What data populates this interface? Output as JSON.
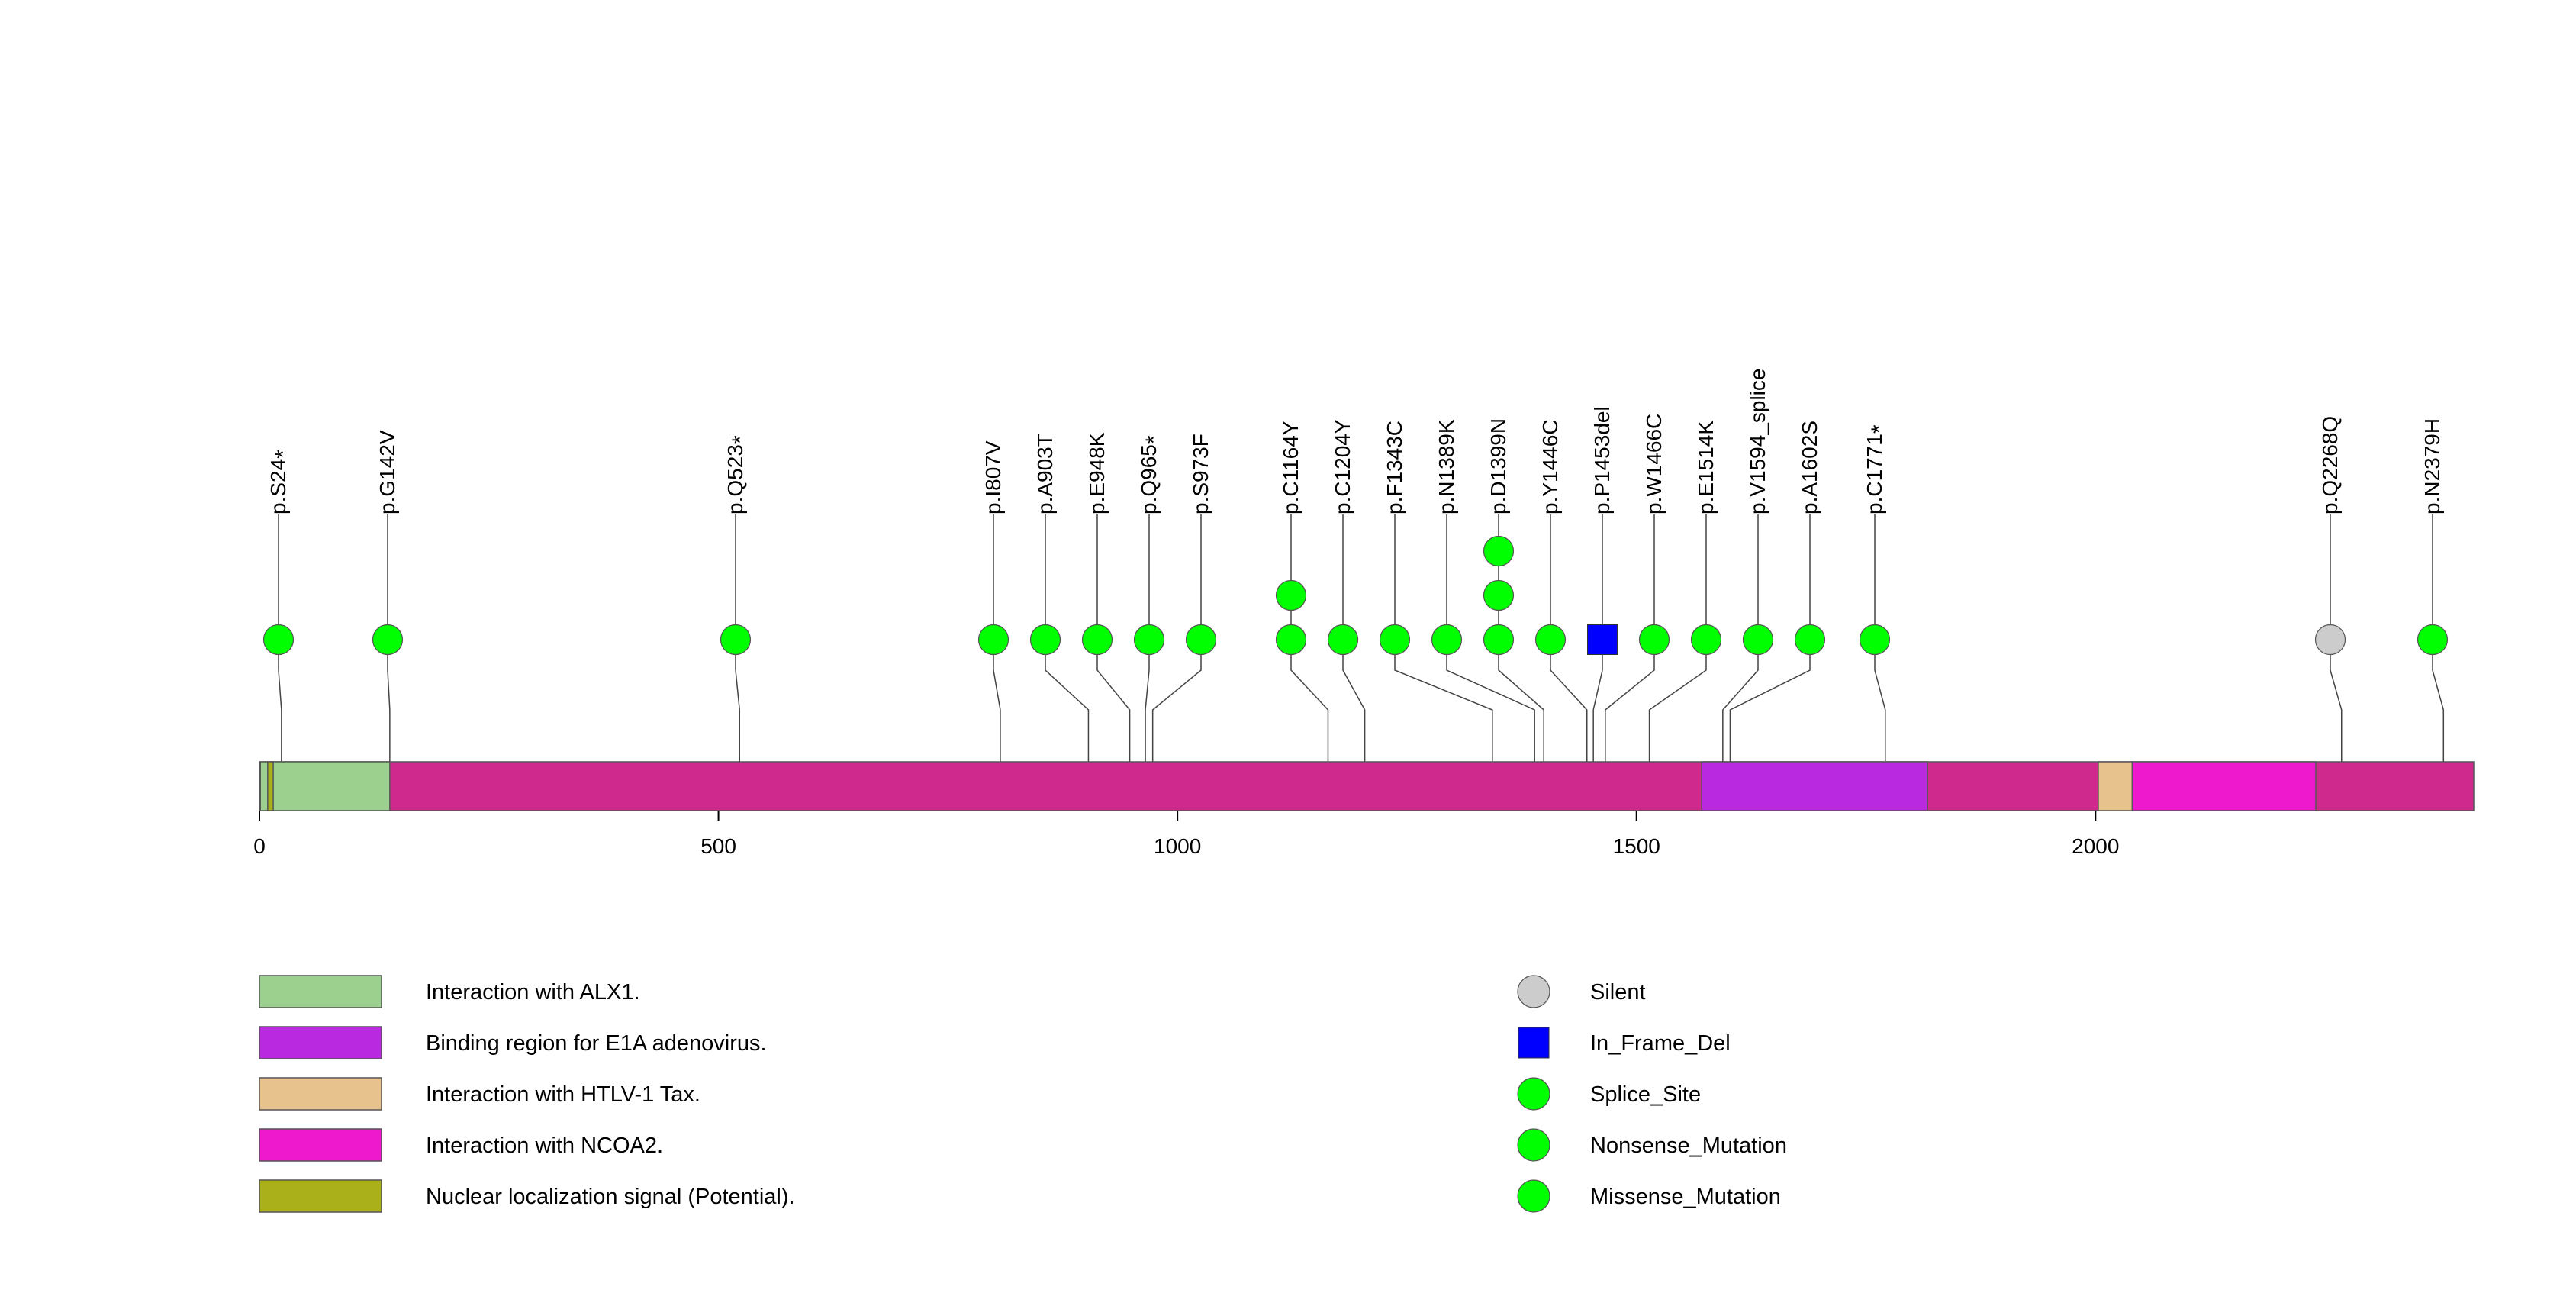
{
  "chart_data": {
    "type": "lollipop",
    "protein_length": 2412,
    "axis_ticks": [
      {
        "value": 0,
        "label": "0"
      },
      {
        "value": 500,
        "label": "500"
      },
      {
        "value": 1000,
        "label": "1000"
      },
      {
        "value": 1500,
        "label": "1500"
      },
      {
        "value": 2000,
        "label": "2000"
      }
    ],
    "backbone_color": "#d0298e",
    "domains": [
      {
        "name": "Interaction with ALX1.",
        "start": 1,
        "end": 142,
        "color": "#9cd08f"
      },
      {
        "name": "Nuclear localization signal (Potential).",
        "start": 9,
        "end": 15,
        "color": "#aab01a"
      },
      {
        "name": "Binding region for E1A adenovirus.",
        "start": 1571,
        "end": 1817,
        "color": "#b829e0"
      },
      {
        "name": "Interaction with HTLV-1 Tax.",
        "start": 2003,
        "end": 2040,
        "color": "#e8c28c"
      },
      {
        "name": "Interaction with NCOA2.",
        "start": 2040,
        "end": 2240,
        "color": "#ee18cc"
      }
    ],
    "mutations": [
      {
        "label": "p.S24",
        "star": true,
        "pos": 24,
        "count": 1,
        "type": "Nonsense_Mutation"
      },
      {
        "label": "p.G142V",
        "star": false,
        "pos": 142,
        "count": 1,
        "type": "Missense_Mutation"
      },
      {
        "label": "p.Q523",
        "star": true,
        "pos": 523,
        "count": 1,
        "type": "Nonsense_Mutation"
      },
      {
        "label": "p.I807V",
        "star": false,
        "pos": 807,
        "count": 1,
        "type": "Missense_Mutation"
      },
      {
        "label": "p.A903T",
        "star": false,
        "pos": 903,
        "count": 1,
        "type": "Missense_Mutation"
      },
      {
        "label": "p.E948K",
        "star": false,
        "pos": 948,
        "count": 1,
        "type": "Missense_Mutation"
      },
      {
        "label": "p.Q965",
        "star": true,
        "pos": 965,
        "count": 1,
        "type": "Nonsense_Mutation"
      },
      {
        "label": "p.S973F",
        "star": false,
        "pos": 973,
        "count": 1,
        "type": "Missense_Mutation"
      },
      {
        "label": "p.C1164Y",
        "star": false,
        "pos": 1164,
        "count": 2,
        "type": "Missense_Mutation"
      },
      {
        "label": "p.C1204Y",
        "star": false,
        "pos": 1204,
        "count": 1,
        "type": "Missense_Mutation"
      },
      {
        "label": "p.F1343C",
        "star": false,
        "pos": 1343,
        "count": 1,
        "type": "Missense_Mutation"
      },
      {
        "label": "p.N1389K",
        "star": false,
        "pos": 1389,
        "count": 1,
        "type": "Missense_Mutation"
      },
      {
        "label": "p.D1399N",
        "star": false,
        "pos": 1399,
        "count": 3,
        "type": "Missense_Mutation"
      },
      {
        "label": "p.Y1446C",
        "star": false,
        "pos": 1446,
        "count": 1,
        "type": "Missense_Mutation"
      },
      {
        "label": "p.P1453del",
        "star": false,
        "pos": 1453,
        "count": 1,
        "type": "In_Frame_Del"
      },
      {
        "label": "p.W1466C",
        "star": false,
        "pos": 1466,
        "count": 1,
        "type": "Missense_Mutation"
      },
      {
        "label": "p.E1514K",
        "star": false,
        "pos": 1514,
        "count": 1,
        "type": "Missense_Mutation"
      },
      {
        "label": "p.V1594_splice",
        "star": false,
        "pos": 1594,
        "count": 1,
        "type": "Splice_Site"
      },
      {
        "label": "p.A1602S",
        "star": false,
        "pos": 1602,
        "count": 1,
        "type": "Missense_Mutation"
      },
      {
        "label": "p.C1771",
        "star": true,
        "pos": 1771,
        "count": 1,
        "type": "Nonsense_Mutation"
      },
      {
        "label": "p.Q2268Q",
        "star": false,
        "pos": 2268,
        "count": 1,
        "type": "Silent"
      },
      {
        "label": "p.N2379H",
        "star": false,
        "pos": 2379,
        "count": 1,
        "type": "Missense_Mutation"
      }
    ],
    "domain_legend": [
      {
        "name": "Interaction with ALX1.",
        "color": "#9cd08f"
      },
      {
        "name": "Binding region for E1A adenovirus.",
        "color": "#b829e0"
      },
      {
        "name": "Interaction with HTLV-1 Tax.",
        "color": "#e8c28c"
      },
      {
        "name": "Interaction with NCOA2.",
        "color": "#ee18cc"
      },
      {
        "name": "Nuclear localization signal (Potential).",
        "color": "#aab01a"
      }
    ],
    "mutation_legend": [
      {
        "name": "Silent",
        "shape": "circle",
        "color": "#cccccc"
      },
      {
        "name": "In_Frame_Del",
        "shape": "square",
        "color": "#0000ff"
      },
      {
        "name": "Splice_Site",
        "shape": "circle",
        "color": "#00ff00"
      },
      {
        "name": "Nonsense_Mutation",
        "shape": "circle",
        "color": "#00ff00"
      },
      {
        "name": "Missense_Mutation",
        "shape": "circle",
        "color": "#00ff00"
      }
    ],
    "star_symbol": "*"
  }
}
